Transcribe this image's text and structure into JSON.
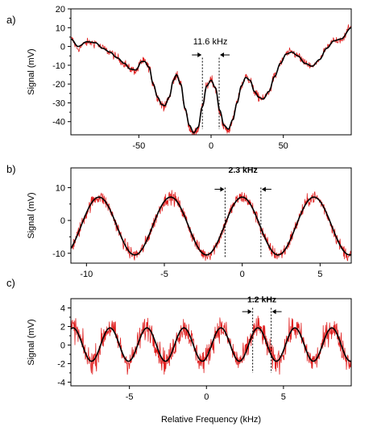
{
  "colors": {
    "measured": "#e02020",
    "fit": "#000000",
    "frame": "#000000"
  },
  "chart_data": [
    {
      "type": "line",
      "panel_label": "a)",
      "title": "",
      "xlabel": "",
      "ylabel": "Signal (mV)",
      "xlim": [
        -97,
        97
      ],
      "ylim": [
        -47,
        20
      ],
      "xticks": [
        -50,
        0,
        50
      ],
      "yticks": [
        20,
        10,
        0,
        -10,
        -20,
        -30,
        -40
      ],
      "series": [
        {
          "role": "measured",
          "style": "noisy",
          "points": [
            [
              -97,
              4
            ],
            [
              -92,
              -1
            ],
            [
              -86,
              2
            ],
            [
              -80,
              2
            ],
            [
              -75,
              -1
            ],
            [
              -70,
              -3
            ],
            [
              -65,
              -6
            ],
            [
              -60,
              -9
            ],
            [
              -56,
              -12
            ],
            [
              -52,
              -13
            ],
            [
              -48,
              -8
            ],
            [
              -46,
              -8
            ],
            [
              -43,
              -11
            ],
            [
              -40,
              -20
            ],
            [
              -37,
              -27
            ],
            [
              -34,
              -31
            ],
            [
              -32,
              -32
            ],
            [
              -29,
              -27
            ],
            [
              -26,
              -18
            ],
            [
              -24,
              -15
            ],
            [
              -21,
              -20
            ],
            [
              -18,
              -33
            ],
            [
              -15,
              -43
            ],
            [
              -12,
              -47
            ],
            [
              -9,
              -44
            ],
            [
              -6,
              -32
            ],
            [
              -3,
              -21
            ],
            [
              0,
              -17
            ],
            [
              3,
              -22
            ],
            [
              6,
              -35
            ],
            [
              9,
              -43
            ],
            [
              12,
              -45
            ],
            [
              15,
              -39
            ],
            [
              18,
              -30
            ],
            [
              21,
              -21
            ],
            [
              24,
              -16
            ],
            [
              27,
              -18
            ],
            [
              30,
              -24
            ],
            [
              33,
              -27
            ],
            [
              36,
              -28
            ],
            [
              40,
              -24
            ],
            [
              44,
              -16
            ],
            [
              48,
              -9
            ],
            [
              52,
              -4
            ],
            [
              56,
              -3
            ],
            [
              60,
              -5
            ],
            [
              65,
              -9
            ],
            [
              70,
              -11
            ],
            [
              75,
              -7
            ],
            [
              80,
              -1
            ],
            [
              85,
              3
            ],
            [
              90,
              4
            ],
            [
              97,
              10
            ]
          ]
        },
        {
          "role": "fit",
          "style": "smooth",
          "points": [
            [
              -97,
              4
            ],
            [
              -92,
              0
            ],
            [
              -86,
              2.5
            ],
            [
              -80,
              2
            ],
            [
              -75,
              -1
            ],
            [
              -70,
              -3
            ],
            [
              -65,
              -6
            ],
            [
              -60,
              -9
            ],
            [
              -56,
              -12
            ],
            [
              -52,
              -12.5
            ],
            [
              -48,
              -8
            ],
            [
              -46,
              -8
            ],
            [
              -43,
              -11
            ],
            [
              -40,
              -20
            ],
            [
              -37,
              -27
            ],
            [
              -34,
              -31
            ],
            [
              -32,
              -31.5
            ],
            [
              -29,
              -27
            ],
            [
              -26,
              -18
            ],
            [
              -24,
              -15
            ],
            [
              -21,
              -20
            ],
            [
              -18,
              -33
            ],
            [
              -15,
              -42
            ],
            [
              -12,
              -46
            ],
            [
              -9,
              -43
            ],
            [
              -6,
              -32
            ],
            [
              -3,
              -21
            ],
            [
              0,
              -18
            ],
            [
              3,
              -22
            ],
            [
              6,
              -34
            ],
            [
              9,
              -42
            ],
            [
              12,
              -44
            ],
            [
              15,
              -39
            ],
            [
              18,
              -30
            ],
            [
              21,
              -21
            ],
            [
              24,
              -16.5
            ],
            [
              27,
              -18
            ],
            [
              30,
              -24
            ],
            [
              33,
              -27
            ],
            [
              36,
              -28
            ],
            [
              40,
              -24
            ],
            [
              44,
              -16
            ],
            [
              48,
              -9
            ],
            [
              52,
              -4
            ],
            [
              56,
              -3
            ],
            [
              60,
              -5
            ],
            [
              65,
              -9
            ],
            [
              70,
              -10.5
            ],
            [
              75,
              -7
            ],
            [
              80,
              -1
            ],
            [
              85,
              3
            ],
            [
              90,
              4
            ],
            [
              97,
              10
            ]
          ]
        }
      ],
      "annotation": {
        "text": "11.6 kHz",
        "bold": false,
        "x_left": -6,
        "x_right": 5.6,
        "y_top": -6,
        "y_bottom": -44,
        "arrow_y": -4.5,
        "label_x": -0.5,
        "label_y": 1
      }
    },
    {
      "type": "line",
      "panel_label": "b)",
      "title": "",
      "xlabel": "",
      "ylabel": "Signal (mV)",
      "xlim": [
        -11,
        7
      ],
      "ylim": [
        -13,
        16
      ],
      "xticks": [
        -10,
        -5,
        0,
        5
      ],
      "yticks": [
        10,
        0,
        -10
      ],
      "series": [
        {
          "role": "measured",
          "style": "noisy",
          "function": "sine",
          "amplitude": 8.8,
          "period": 4.6,
          "phase": 0,
          "offset": -1.7,
          "noise": 1.8
        },
        {
          "role": "fit",
          "style": "smooth",
          "function": "sine",
          "amplitude": 8.8,
          "period": 4.6,
          "phase": 0,
          "offset": -1.7
        }
      ],
      "annotation": {
        "text": "2.3 kHz",
        "bold": true,
        "x_left": -1.1,
        "x_right": 1.2,
        "y_top": 10,
        "y_bottom": -11.5,
        "arrow_y": 9.5,
        "label_x": 0.05,
        "label_y": 14.5
      }
    },
    {
      "type": "line",
      "panel_label": "c)",
      "title": "",
      "xlabel": "Relative Frequency (kHz)",
      "ylabel": "Signal (mV)",
      "xlim": [
        -8.8,
        9.4
      ],
      "ylim": [
        -4.4,
        5
      ],
      "xticks": [
        -5,
        0,
        5
      ],
      "yticks": [
        4,
        2,
        0,
        -2,
        -4
      ],
      "series": [
        {
          "role": "measured",
          "style": "noisy",
          "function": "sine",
          "amplitude": 1.8,
          "period": 2.4,
          "phase": 0.94,
          "offset": 0.05,
          "noise": 1.2
        },
        {
          "role": "fit",
          "style": "smooth",
          "function": "sine",
          "amplitude": 1.8,
          "period": 2.4,
          "phase": 0.94,
          "offset": 0.05
        }
      ],
      "annotation": {
        "text": "1.2 kHz",
        "bold": true,
        "x_left": 3.0,
        "x_right": 4.2,
        "y_top": 4,
        "y_bottom": -3,
        "arrow_y": 3.6,
        "label_x": 3.6,
        "label_y": 4.6
      }
    }
  ]
}
